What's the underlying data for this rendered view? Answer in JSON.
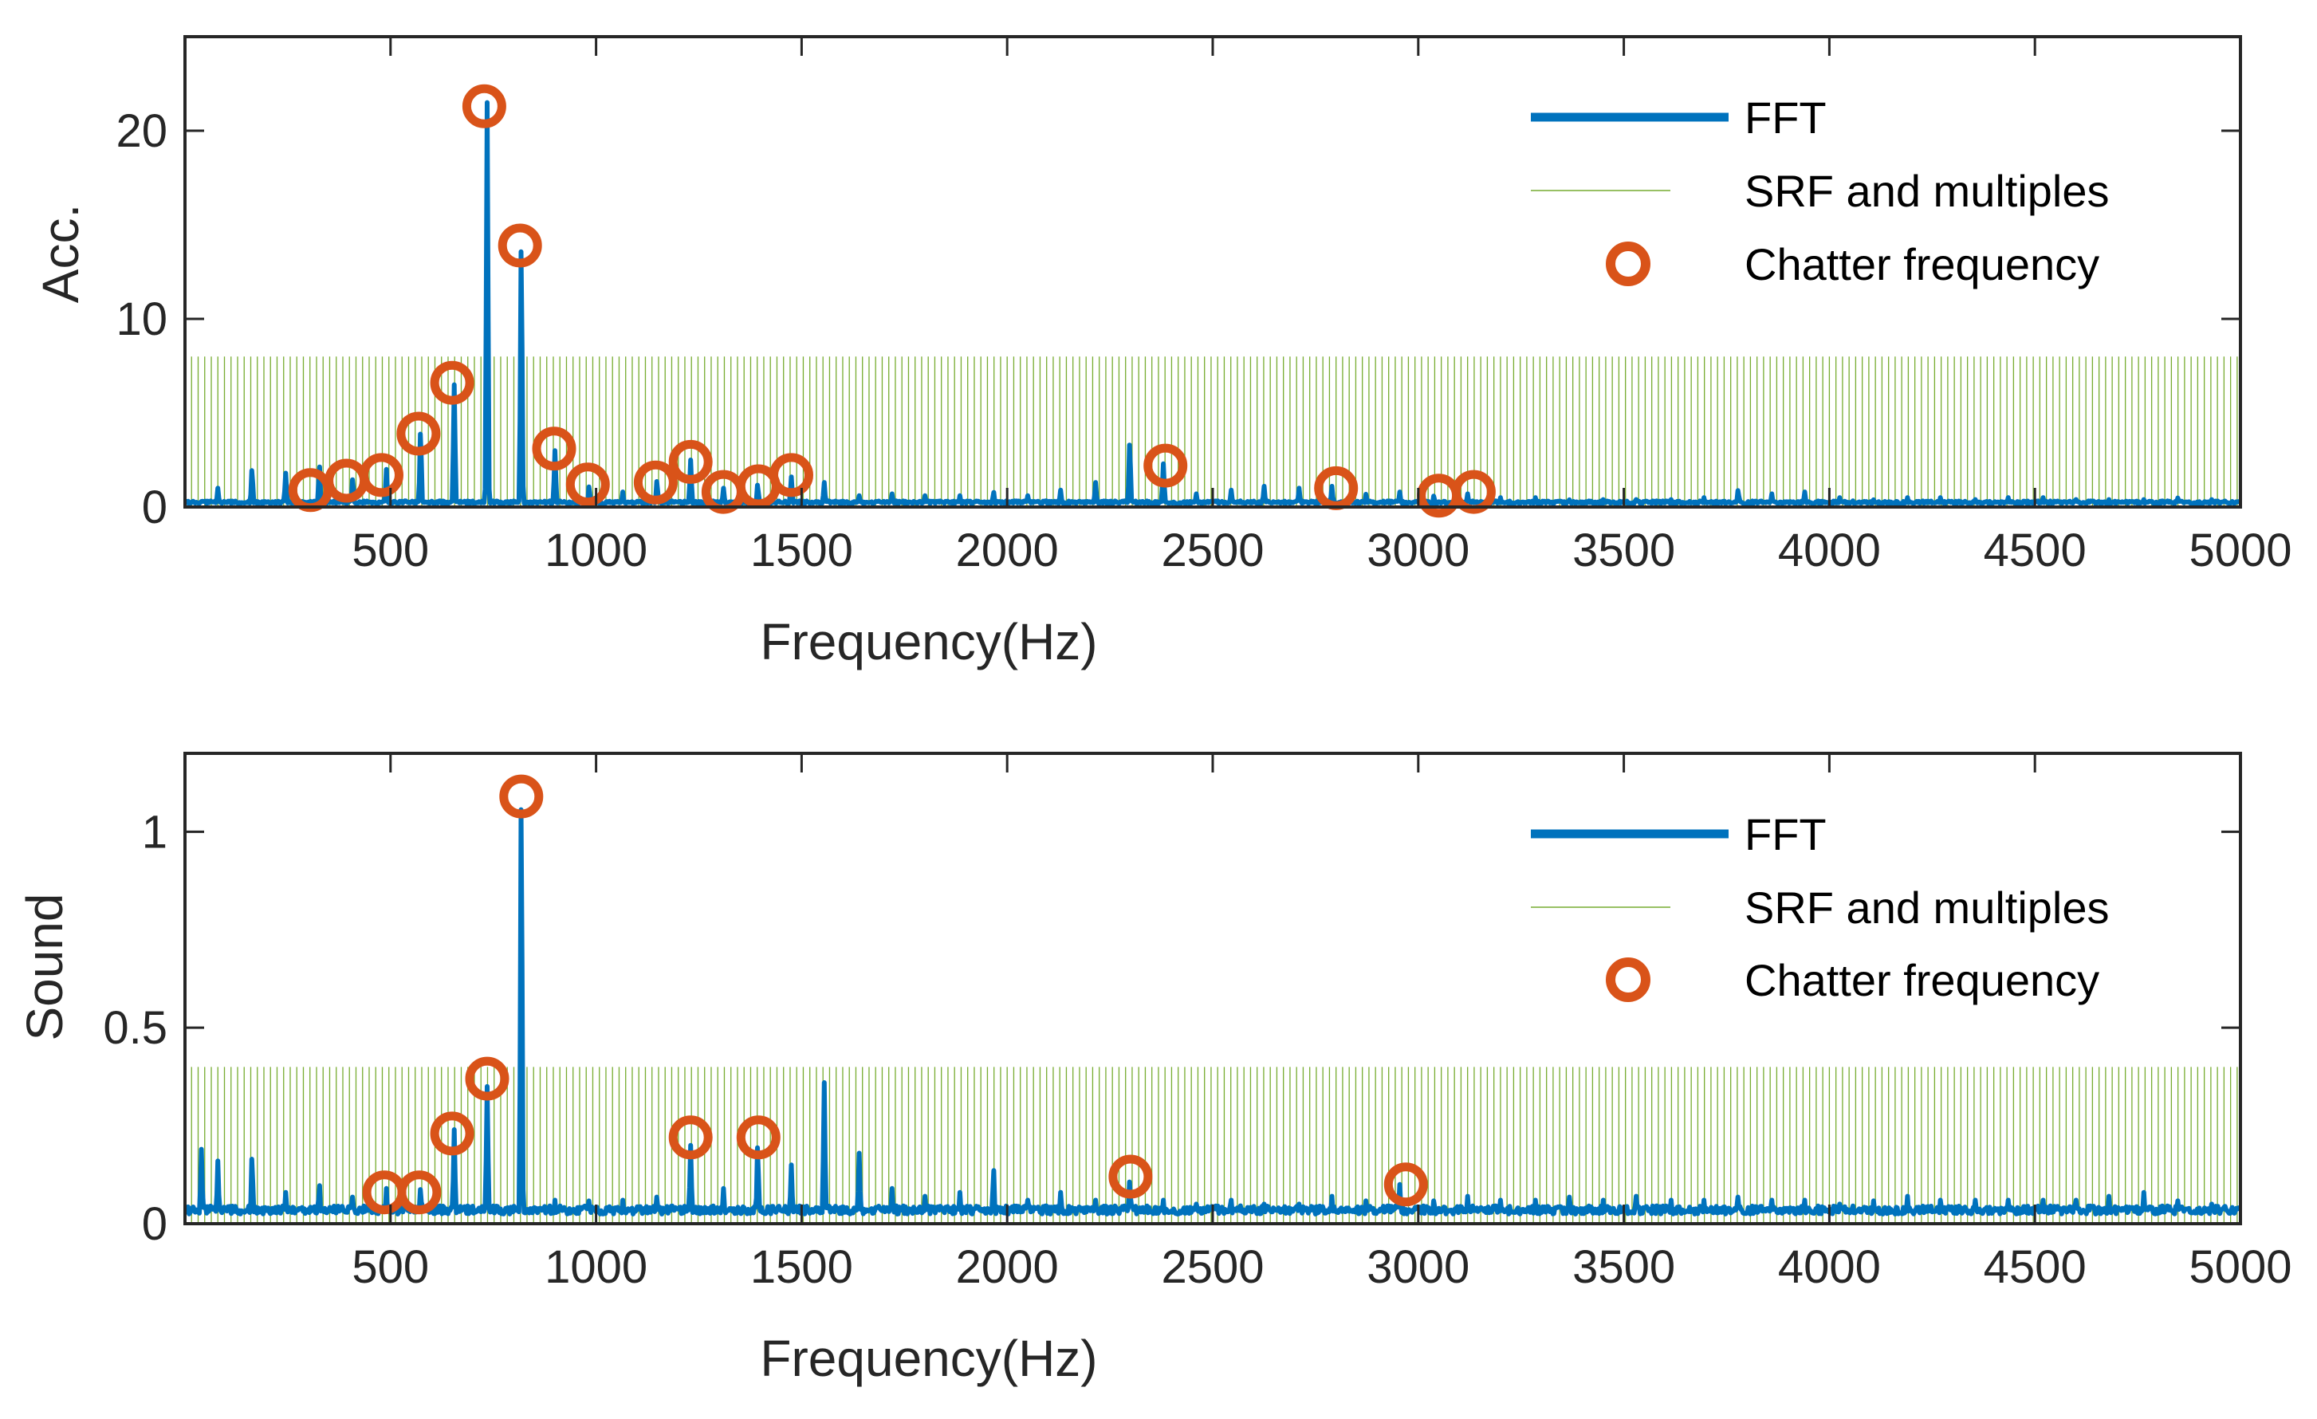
{
  "colors": {
    "fft": "#0072BD",
    "srf": "#77AC30",
    "chatter": "#D95319",
    "axis": "#262626"
  },
  "chart_data": [
    {
      "type": "line",
      "id": "acc",
      "ylabel": "Acc.",
      "xlabel": "Frequency(Hz)",
      "xlim": [
        0,
        5000
      ],
      "ylim": [
        0,
        25
      ],
      "xticks": [
        500,
        1000,
        1500,
        2000,
        2500,
        3000,
        3500,
        4000,
        4500,
        5000
      ],
      "yticks": [
        0,
        10,
        20
      ],
      "legend": {
        "position": "top-right",
        "entries": [
          "FFT",
          "SRF and multiples",
          "Chatter frequency"
        ]
      },
      "srf": {
        "fundamental_hz": 16,
        "height": 8
      },
      "baseline": 0.25,
      "fft_peaks": [
        [
          80,
          1.0
        ],
        [
          163,
          2.0
        ],
        [
          245,
          1.8
        ],
        [
          327,
          2.2
        ],
        [
          408,
          1.5
        ],
        [
          490,
          2.0
        ],
        [
          573,
          4.0
        ],
        [
          655,
          6.5
        ],
        [
          735,
          21.5
        ],
        [
          818,
          14.0
        ],
        [
          900,
          3.0
        ],
        [
          983,
          1.1
        ],
        [
          1065,
          0.8
        ],
        [
          1148,
          1.4
        ],
        [
          1230,
          2.5
        ],
        [
          1310,
          1.0
        ],
        [
          1393,
          1.2
        ],
        [
          1475,
          1.6
        ],
        [
          1555,
          1.3
        ],
        [
          1640,
          0.6
        ],
        [
          1720,
          0.7
        ],
        [
          1800,
          0.6
        ],
        [
          1885,
          0.6
        ],
        [
          1967,
          0.8
        ],
        [
          2050,
          0.6
        ],
        [
          2130,
          0.9
        ],
        [
          2215,
          1.3
        ],
        [
          2298,
          3.4
        ],
        [
          2380,
          2.3
        ],
        [
          2460,
          0.7
        ],
        [
          2545,
          0.9
        ],
        [
          2625,
          1.1
        ],
        [
          2710,
          1.0
        ],
        [
          2790,
          1.1
        ],
        [
          2873,
          0.7
        ],
        [
          2955,
          0.8
        ],
        [
          3038,
          0.6
        ],
        [
          3120,
          0.7
        ],
        [
          3200,
          0.5
        ],
        [
          3285,
          0.5
        ],
        [
          3368,
          0.4
        ],
        [
          3450,
          0.4
        ],
        [
          3530,
          0.4
        ],
        [
          3615,
          0.4
        ],
        [
          3695,
          0.5
        ],
        [
          3778,
          0.9
        ],
        [
          3860,
          0.7
        ],
        [
          3940,
          0.8
        ],
        [
          4025,
          0.5
        ],
        [
          4108,
          0.4
        ],
        [
          4190,
          0.5
        ],
        [
          4270,
          0.5
        ],
        [
          4355,
          0.4
        ],
        [
          4435,
          0.5
        ],
        [
          4520,
          0.5
        ],
        [
          4600,
          0.4
        ],
        [
          4680,
          0.4
        ],
        [
          4765,
          0.4
        ],
        [
          4848,
          0.5
        ],
        [
          4930,
          0.4
        ]
      ],
      "chatter": [
        [
          305,
          0.9
        ],
        [
          393,
          1.4
        ],
        [
          478,
          1.7
        ],
        [
          568,
          3.9
        ],
        [
          650,
          6.6
        ],
        [
          728,
          21.3
        ],
        [
          815,
          13.9
        ],
        [
          898,
          3.1
        ],
        [
          980,
          1.2
        ],
        [
          1145,
          1.3
        ],
        [
          1230,
          2.4
        ],
        [
          1310,
          0.8
        ],
        [
          1395,
          1.1
        ],
        [
          1475,
          1.7
        ],
        [
          2385,
          2.2
        ],
        [
          2800,
          1.0
        ],
        [
          3050,
          0.6
        ],
        [
          3135,
          0.8
        ]
      ]
    },
    {
      "type": "line",
      "id": "sound",
      "ylabel": "Sound",
      "xlabel": "Frequency(Hz)",
      "xlim": [
        0,
        5000
      ],
      "ylim": [
        0,
        1.2
      ],
      "xticks": [
        500,
        1000,
        1500,
        2000,
        2500,
        3000,
        3500,
        4000,
        4500,
        5000
      ],
      "yticks": [
        0,
        0.5,
        1
      ],
      "legend": {
        "position": "top-right",
        "entries": [
          "FFT",
          "SRF and multiples",
          "Chatter frequency"
        ]
      },
      "srf": {
        "fundamental_hz": 16,
        "height": 0.4
      },
      "baseline": 0.035,
      "fft_peaks": [
        [
          40,
          0.19
        ],
        [
          80,
          0.16
        ],
        [
          163,
          0.17
        ],
        [
          245,
          0.08
        ],
        [
          327,
          0.1
        ],
        [
          408,
          0.07
        ],
        [
          490,
          0.09
        ],
        [
          573,
          0.09
        ],
        [
          655,
          0.24
        ],
        [
          735,
          0.35
        ],
        [
          818,
          1.09
        ],
        [
          900,
          0.06
        ],
        [
          983,
          0.06
        ],
        [
          1065,
          0.06
        ],
        [
          1148,
          0.07
        ],
        [
          1230,
          0.2
        ],
        [
          1310,
          0.09
        ],
        [
          1393,
          0.2
        ],
        [
          1475,
          0.15
        ],
        [
          1555,
          0.36
        ],
        [
          1640,
          0.18
        ],
        [
          1720,
          0.09
        ],
        [
          1800,
          0.07
        ],
        [
          1885,
          0.08
        ],
        [
          1967,
          0.14
        ],
        [
          2050,
          0.06
        ],
        [
          2130,
          0.08
        ],
        [
          2215,
          0.06
        ],
        [
          2298,
          0.11
        ],
        [
          2380,
          0.06
        ],
        [
          2460,
          0.05
        ],
        [
          2545,
          0.06
        ],
        [
          2625,
          0.05
        ],
        [
          2710,
          0.05
        ],
        [
          2790,
          0.07
        ],
        [
          2873,
          0.06
        ],
        [
          2955,
          0.1
        ],
        [
          3038,
          0.06
        ],
        [
          3120,
          0.07
        ],
        [
          3200,
          0.06
        ],
        [
          3285,
          0.06
        ],
        [
          3368,
          0.07
        ],
        [
          3450,
          0.06
        ],
        [
          3530,
          0.07
        ],
        [
          3615,
          0.06
        ],
        [
          3695,
          0.06
        ],
        [
          3778,
          0.07
        ],
        [
          3860,
          0.06
        ],
        [
          3940,
          0.06
        ],
        [
          4025,
          0.05
        ],
        [
          4108,
          0.06
        ],
        [
          4190,
          0.07
        ],
        [
          4270,
          0.06
        ],
        [
          4355,
          0.06
        ],
        [
          4435,
          0.06
        ],
        [
          4520,
          0.06
        ],
        [
          4600,
          0.06
        ],
        [
          4680,
          0.07
        ],
        [
          4765,
          0.08
        ],
        [
          4848,
          0.06
        ],
        [
          4930,
          0.05
        ]
      ],
      "chatter": [
        [
          485,
          0.08
        ],
        [
          570,
          0.08
        ],
        [
          650,
          0.23
        ],
        [
          735,
          0.37
        ],
        [
          818,
          1.09
        ],
        [
          1230,
          0.22
        ],
        [
          1395,
          0.22
        ],
        [
          2300,
          0.12
        ],
        [
          2970,
          0.1
        ]
      ]
    }
  ]
}
